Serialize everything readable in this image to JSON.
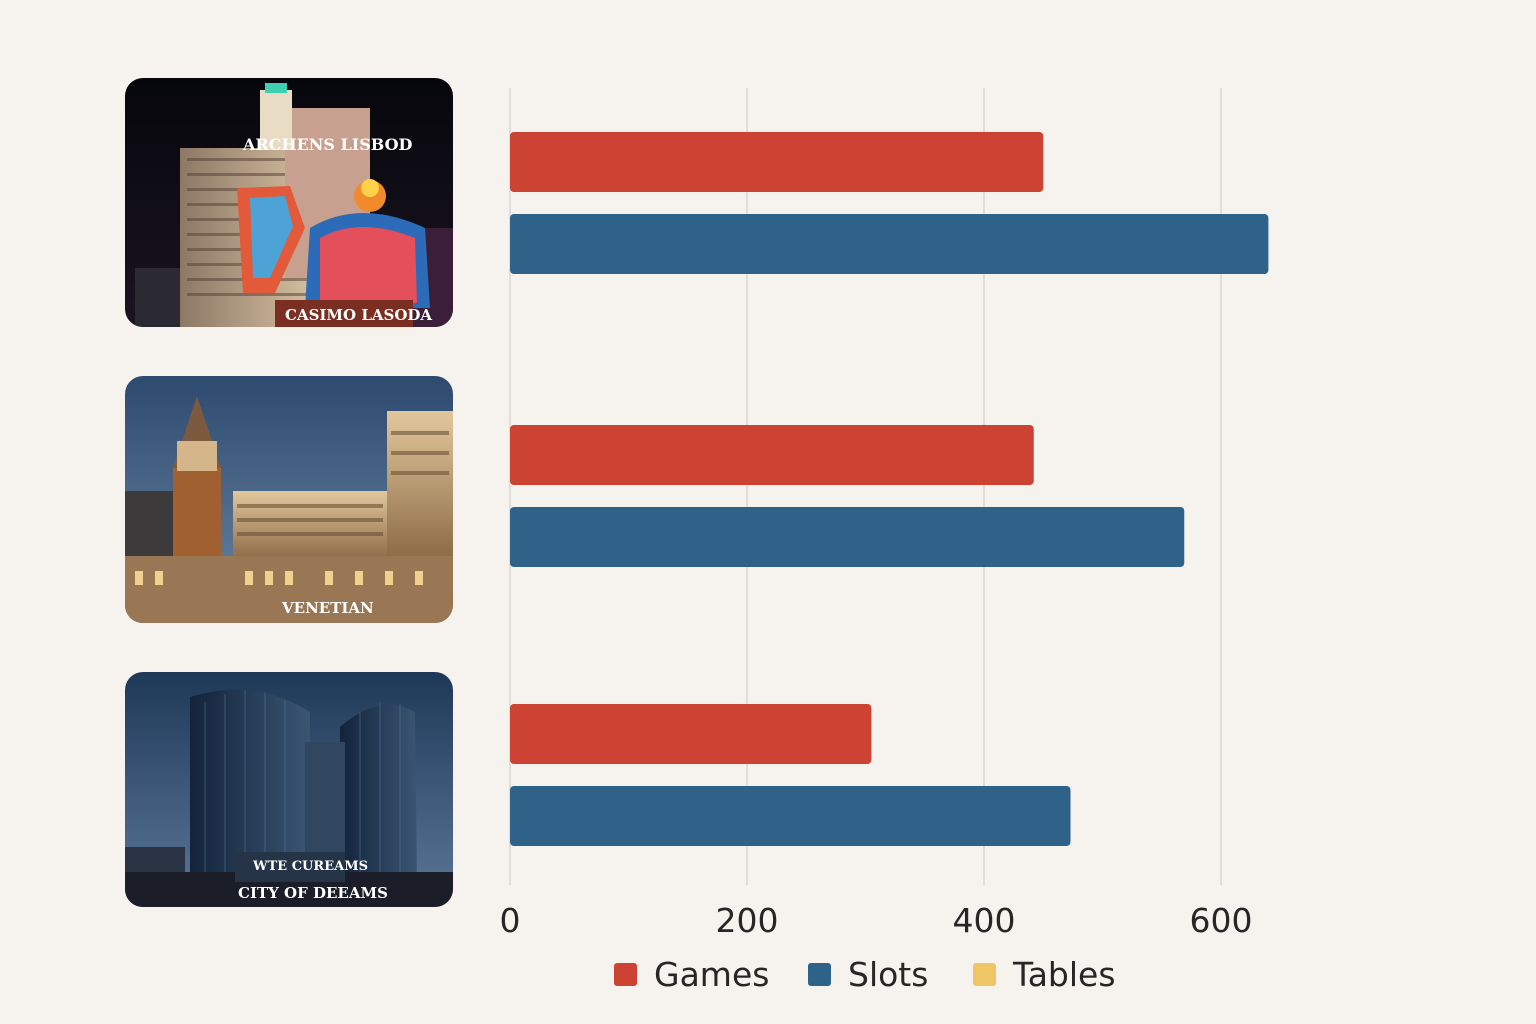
{
  "chart_data": {
    "type": "bar",
    "orientation": "horizontal",
    "title": "",
    "xlabel": "",
    "ylabel": "",
    "categories": [
      {
        "id": "casino-lisboa",
        "photo_signs": [
          "ARCHENS LISBOD",
          "CASIMO LASODA"
        ]
      },
      {
        "id": "venetian",
        "photo_signs": [
          "VENETIAN"
        ]
      },
      {
        "id": "city-of-dreams",
        "photo_signs": [
          "WTE CUREAMS",
          "CITY OF DEEAMS"
        ]
      }
    ],
    "series": [
      {
        "name": "Games",
        "color": "#cc4233",
        "values": [
          450,
          442,
          305
        ]
      },
      {
        "name": "Slots",
        "color": "#2f6289",
        "values": [
          640,
          569,
          473
        ]
      },
      {
        "name": "Tables",
        "color": "#eec665",
        "values": [
          0,
          0,
          0
        ]
      }
    ],
    "xlim": [
      0,
      650
    ],
    "xticks": [
      0,
      200,
      400,
      600
    ],
    "xtick_labels": [
      "0",
      "200",
      "400",
      "600"
    ],
    "grid": true,
    "legend": "bottom-center",
    "category_labels": "photos"
  }
}
